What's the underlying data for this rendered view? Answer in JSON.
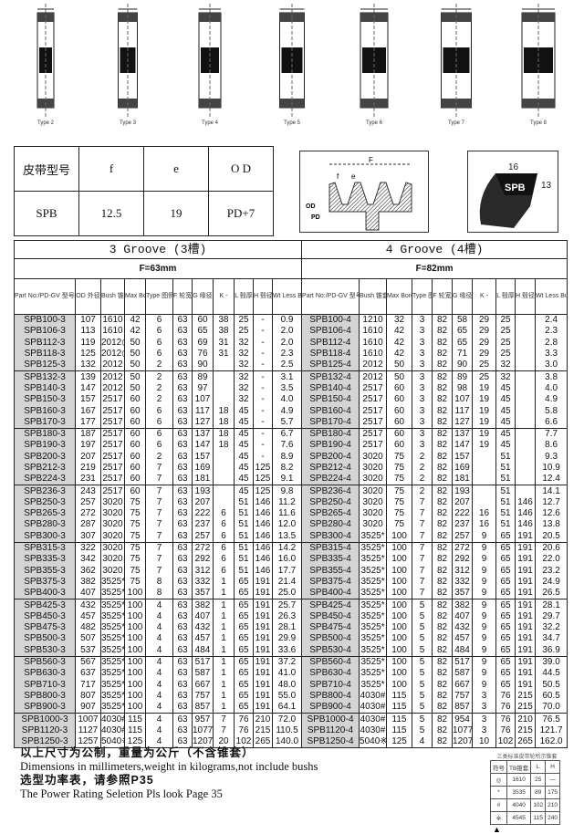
{
  "pulley_types": [
    "Type 2",
    "Type 3",
    "Type 4",
    "Type 5",
    "Type 6",
    "Type 7",
    "Type 8"
  ],
  "spec": {
    "headers": [
      "皮带型号",
      "f",
      "e",
      "O D"
    ],
    "values": [
      "SPB",
      "12.5",
      "19",
      "PD+7"
    ]
  },
  "groove_diagram": {
    "labels": [
      "F",
      "f",
      "e",
      "OD",
      "PD"
    ]
  },
  "belt": {
    "name": "SPB",
    "width": "16",
    "height": "13"
  },
  "left": {
    "title": "3 Groove (3槽)",
    "f_label": "F=63mm",
    "columns": [
      "Part No:/PD-GV 型号/节径-槽数",
      "OD 外径",
      "Bush 锥套",
      "Max Bore 最大孔",
      "Type 图例",
      "F 轮宽",
      "G 缘径",
      "K -",
      "L 毂厚",
      "H 毂径",
      "Wt Less Bush 重量"
    ]
  },
  "right": {
    "title": "4 Groove (4槽)",
    "f_label": "F=82mm",
    "columns": [
      "Part No:/PD-GV 型号/节径-槽数",
      "Bush 锥套",
      "Max Bore 最大孔",
      "Type 图例",
      "F 轮宽",
      "G 缘径",
      "K -",
      "L 毂厚",
      "H 毂径",
      "Wt Less Bush 重量"
    ]
  },
  "left_rows": [
    [
      "SPB100-3",
      "107",
      "1610",
      "42",
      "6",
      "63",
      "60",
      "38",
      "25",
      "-",
      "0.9"
    ],
    [
      "SPB106-3",
      "113",
      "1610",
      "42",
      "6",
      "63",
      "65",
      "38",
      "25",
      "-",
      "2.0"
    ],
    [
      "SPB112-3",
      "119",
      "2012◎",
      "50",
      "6",
      "63",
      "69",
      "31",
      "32",
      "-",
      "2.0"
    ],
    [
      "SPB118-3",
      "125",
      "2012◎",
      "50",
      "6",
      "63",
      "76",
      "31",
      "32",
      "-",
      "2.3"
    ],
    [
      "SPB125-3",
      "132",
      "2012",
      "50",
      "2",
      "63",
      "90",
      "",
      "32",
      "-",
      "2.5"
    ],
    [
      "SPB132-3",
      "139",
      "2012",
      "50",
      "2",
      "63",
      "89",
      "",
      "32",
      "-",
      "3.1"
    ],
    [
      "SPB140-3",
      "147",
      "2012",
      "50",
      "2",
      "63",
      "97",
      "",
      "32",
      "-",
      "3.5"
    ],
    [
      "SPB150-3",
      "157",
      "2517",
      "60",
      "2",
      "63",
      "107",
      "",
      "32",
      "-",
      "4.0"
    ],
    [
      "SPB160-3",
      "167",
      "2517",
      "60",
      "6",
      "63",
      "117",
      "18",
      "45",
      "-",
      "4.9"
    ],
    [
      "SPB170-3",
      "177",
      "2517",
      "60",
      "6",
      "63",
      "127",
      "18",
      "45",
      "-",
      "5.7"
    ],
    [
      "SPB180-3",
      "187",
      "2517",
      "60",
      "6",
      "63",
      "137",
      "18",
      "45",
      "-",
      "6.7"
    ],
    [
      "SPB190-3",
      "197",
      "2517",
      "60",
      "6",
      "63",
      "147",
      "18",
      "45",
      "-",
      "7.6"
    ],
    [
      "SPB200-3",
      "207",
      "2517",
      "60",
      "2",
      "63",
      "157",
      "",
      "45",
      "-",
      "8.9"
    ],
    [
      "SPB212-3",
      "219",
      "2517",
      "60",
      "7",
      "63",
      "169",
      "",
      "45",
      "125",
      "8.2"
    ],
    [
      "SPB224-3",
      "231",
      "2517",
      "60",
      "7",
      "63",
      "181",
      "",
      "45",
      "125",
      "9.1"
    ],
    [
      "SPB236-3",
      "243",
      "2517",
      "60",
      "7",
      "63",
      "193",
      "",
      "45",
      "125",
      "9.8"
    ],
    [
      "SPB250-3",
      "257",
      "3020",
      "75",
      "7",
      "63",
      "207",
      "",
      "51",
      "146",
      "11.2"
    ],
    [
      "SPB265-3",
      "272",
      "3020",
      "75",
      "7",
      "63",
      "222",
      "6",
      "51",
      "146",
      "11.6"
    ],
    [
      "SPB280-3",
      "287",
      "3020",
      "75",
      "7",
      "63",
      "237",
      "6",
      "51",
      "146",
      "12.0"
    ],
    [
      "SPB300-3",
      "307",
      "3020",
      "75",
      "7",
      "63",
      "257",
      "6",
      "51",
      "146",
      "13.5"
    ],
    [
      "SPB315-3",
      "322",
      "3020",
      "75",
      "7",
      "63",
      "272",
      "6",
      "51",
      "146",
      "14.2"
    ],
    [
      "SPB335-3",
      "342",
      "3020",
      "75",
      "7",
      "63",
      "292",
      "6",
      "51",
      "146",
      "16.0"
    ],
    [
      "SPB355-3",
      "362",
      "3020",
      "75",
      "7",
      "63",
      "312",
      "6",
      "51",
      "146",
      "17.7"
    ],
    [
      "SPB375-3",
      "382",
      "3525*",
      "75",
      "8",
      "63",
      "332",
      "1",
      "65",
      "191",
      "21.4"
    ],
    [
      "SPB400-3",
      "407",
      "3525*",
      "100",
      "8",
      "63",
      "357",
      "1",
      "65",
      "191",
      "25.0"
    ],
    [
      "SPB425-3",
      "432",
      "3525*",
      "100",
      "4",
      "63",
      "382",
      "1",
      "65",
      "191",
      "25.7"
    ],
    [
      "SPB450-3",
      "457",
      "3525*",
      "100",
      "4",
      "63",
      "407",
      "1",
      "65",
      "191",
      "26.3"
    ],
    [
      "SPB475-3",
      "482",
      "3525*",
      "100",
      "4",
      "63",
      "432",
      "1",
      "65",
      "191",
      "28.1"
    ],
    [
      "SPB500-3",
      "507",
      "3525*",
      "100",
      "4",
      "63",
      "457",
      "1",
      "65",
      "191",
      "29.9"
    ],
    [
      "SPB530-3",
      "537",
      "3525*",
      "100",
      "4",
      "63",
      "484",
      "1",
      "65",
      "191",
      "33.6"
    ],
    [
      "SPB560-3",
      "567",
      "3525*",
      "100",
      "4",
      "63",
      "517",
      "1",
      "65",
      "191",
      "37.2"
    ],
    [
      "SPB630-3",
      "637",
      "3525*",
      "100",
      "4",
      "63",
      "587",
      "1",
      "65",
      "191",
      "41.0"
    ],
    [
      "SPB710-3",
      "717",
      "3525*",
      "100",
      "4",
      "63",
      "667",
      "1",
      "65",
      "191",
      "48.0"
    ],
    [
      "SPB800-3",
      "807",
      "3525*",
      "100",
      "4",
      "63",
      "757",
      "1",
      "65",
      "191",
      "55.0"
    ],
    [
      "SPB900-3",
      "907",
      "3525*",
      "100",
      "4",
      "63",
      "857",
      "1",
      "65",
      "191",
      "64.1"
    ],
    [
      "SPB1000-3",
      "1007",
      "4030#",
      "115",
      "4",
      "63",
      "957",
      "7",
      "76",
      "210",
      "72.0"
    ],
    [
      "SPB1120-3",
      "1127",
      "4030#",
      "115",
      "4",
      "63",
      "1077",
      "7",
      "76",
      "215",
      "110.5"
    ],
    [
      "SPB1250-3",
      "1257",
      "5040※",
      "125",
      "4",
      "63",
      "1207",
      "20",
      "102",
      "265",
      "140.0"
    ]
  ],
  "right_rows": [
    [
      "SPB100-4",
      "1210",
      "32",
      "3",
      "82",
      "58",
      "29",
      "25",
      "",
      "2.4"
    ],
    [
      "SPB106-4",
      "1610",
      "42",
      "3",
      "82",
      "65",
      "29",
      "25",
      "",
      "2.3"
    ],
    [
      "SPB112-4",
      "1610",
      "42",
      "3",
      "82",
      "65",
      "29",
      "25",
      "",
      "2.8"
    ],
    [
      "SPB118-4",
      "1610",
      "42",
      "3",
      "82",
      "71",
      "29",
      "25",
      "",
      "3.3"
    ],
    [
      "SPB125-4",
      "2012",
      "50",
      "3",
      "82",
      "90",
      "25",
      "32",
      "",
      "3.0"
    ],
    [
      "SPB132-4",
      "2012",
      "50",
      "3",
      "82",
      "89",
      "25",
      "32",
      "",
      "3.8"
    ],
    [
      "SPB140-4",
      "2517",
      "60",
      "3",
      "82",
      "98",
      "19",
      "45",
      "",
      "4.0"
    ],
    [
      "SPB150-4",
      "2517",
      "60",
      "3",
      "82",
      "107",
      "19",
      "45",
      "",
      "4.9"
    ],
    [
      "SPB160-4",
      "2517",
      "60",
      "3",
      "82",
      "117",
      "19",
      "45",
      "",
      "5.8"
    ],
    [
      "SPB170-4",
      "2517",
      "60",
      "3",
      "82",
      "127",
      "19",
      "45",
      "",
      "6.6"
    ],
    [
      "SPB180-4",
      "2517",
      "60",
      "3",
      "82",
      "137",
      "19",
      "45",
      "",
      "7.7"
    ],
    [
      "SPB190-4",
      "2517",
      "60",
      "3",
      "82",
      "147",
      "19",
      "45",
      "",
      "8.6"
    ],
    [
      "SPB200-4",
      "3020",
      "75",
      "2",
      "82",
      "157",
      "",
      "51",
      "",
      "9.3"
    ],
    [
      "SPB212-4",
      "3020",
      "75",
      "2",
      "82",
      "169",
      "",
      "51",
      "",
      "10.9"
    ],
    [
      "SPB224-4",
      "3020",
      "75",
      "2",
      "82",
      "181",
      "",
      "51",
      "",
      "12.4"
    ],
    [
      "SPB236-4",
      "3020",
      "75",
      "2",
      "82",
      "193",
      "",
      "51",
      "",
      "14.1"
    ],
    [
      "SPB250-4",
      "3020",
      "75",
      "7",
      "82",
      "207",
      "",
      "51",
      "146",
      "12.7"
    ],
    [
      "SPB265-4",
      "3020",
      "75",
      "7",
      "82",
      "222",
      "16",
      "51",
      "146",
      "12.6"
    ],
    [
      "SPB280-4",
      "3020",
      "75",
      "7",
      "82",
      "237",
      "16",
      "51",
      "146",
      "13.8"
    ],
    [
      "SPB300-4",
      "3525*",
      "100",
      "7",
      "82",
      "257",
      "9",
      "65",
      "191",
      "20.5"
    ],
    [
      "SPB315-4",
      "3525*",
      "100",
      "7",
      "82",
      "272",
      "9",
      "65",
      "191",
      "20.6"
    ],
    [
      "SPB335-4",
      "3525*",
      "100",
      "7",
      "82",
      "292",
      "9",
      "65",
      "191",
      "22.0"
    ],
    [
      "SPB355-4",
      "3525*",
      "100",
      "7",
      "82",
      "312",
      "9",
      "65",
      "191",
      "23.2"
    ],
    [
      "SPB375-4",
      "3525*",
      "100",
      "7",
      "82",
      "332",
      "9",
      "65",
      "191",
      "24.9"
    ],
    [
      "SPB400-4",
      "3525*",
      "100",
      "7",
      "82",
      "357",
      "9",
      "65",
      "191",
      "26.5"
    ],
    [
      "SPB425-4",
      "3525*",
      "100",
      "5",
      "82",
      "382",
      "9",
      "65",
      "191",
      "28.1"
    ],
    [
      "SPB450-4",
      "3525*",
      "100",
      "5",
      "82",
      "407",
      "9",
      "65",
      "191",
      "29.7"
    ],
    [
      "SPB475-4",
      "3525*",
      "100",
      "5",
      "82",
      "432",
      "9",
      "65",
      "191",
      "32.2"
    ],
    [
      "SPB500-4",
      "3525*",
      "100",
      "5",
      "82",
      "457",
      "9",
      "65",
      "191",
      "34.7"
    ],
    [
      "SPB530-4",
      "3525*",
      "100",
      "5",
      "82",
      "484",
      "9",
      "65",
      "191",
      "36.9"
    ],
    [
      "SPB560-4",
      "3525*",
      "100",
      "5",
      "82",
      "517",
      "9",
      "65",
      "191",
      "39.0"
    ],
    [
      "SPB630-4",
      "3525*",
      "100",
      "5",
      "82",
      "587",
      "9",
      "65",
      "191",
      "44.5"
    ],
    [
      "SPB710-4",
      "3525*",
      "100",
      "5",
      "82",
      "667",
      "9",
      "65",
      "191",
      "50.5"
    ],
    [
      "SPB800-4",
      "4030#",
      "115",
      "5",
      "82",
      "757",
      "3",
      "76",
      "215",
      "60.5"
    ],
    [
      "SPB900-4",
      "4030#",
      "115",
      "5",
      "82",
      "857",
      "3",
      "76",
      "215",
      "70.0"
    ],
    [
      "SPB1000-4",
      "4030#",
      "115",
      "5",
      "82",
      "954",
      "3",
      "76",
      "210",
      "76.5"
    ],
    [
      "SPB1120-4",
      "4030#",
      "115",
      "5",
      "82",
      "1077",
      "3",
      "76",
      "215",
      "121.7"
    ],
    [
      "SPB1250-4",
      "5040※",
      "125",
      "4",
      "82",
      "1207",
      "10",
      "102",
      "265",
      "162.0"
    ]
  ],
  "notes": [
    "以上尺寸为公制，重量为公斤（不含锥套）",
    "Dimensions in millimeters,weight in kilograms,not include bushs",
    "选型功率表，请参照P35",
    "The Power Rating Seletion Pls look Page 35"
  ],
  "legend": {
    "title": "三类标准皮带轮所示锥套",
    "headers": [
      "符号",
      "TB锥套",
      "L",
      "H"
    ],
    "rows": [
      [
        "◎",
        "1610",
        "25",
        "—"
      ],
      [
        "*",
        "3535",
        "89",
        "175"
      ],
      [
        "#",
        "4040",
        "102",
        "210"
      ],
      [
        "※",
        "4545",
        "115",
        "240"
      ]
    ],
    "marker": "▲"
  },
  "colors": {
    "part_cell": "#d4d4d4",
    "line": "#222222"
  }
}
